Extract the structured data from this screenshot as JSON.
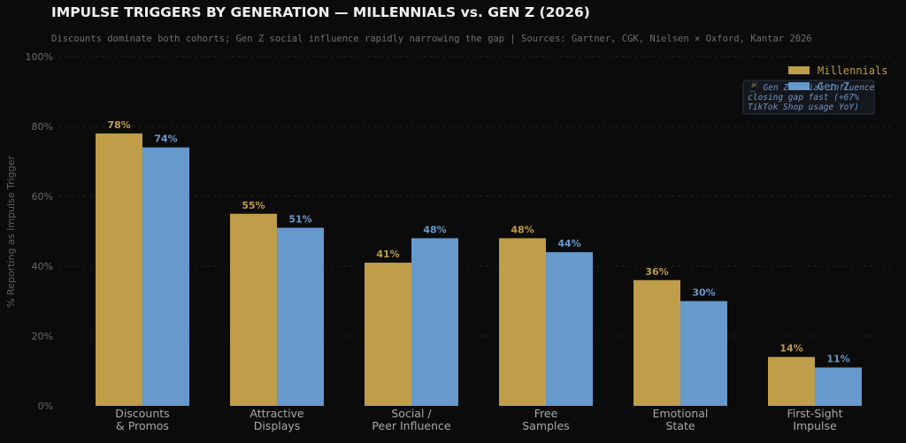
{
  "colors": {
    "background": "#0b0b0b",
    "millennials": "#bf9d49",
    "genz": "#6699cc",
    "title": "#f0f0f0",
    "subtitle": "#6f6f6f",
    "axis_text": "#6a6a6a",
    "category_text": "#a8a8a8",
    "grid": "#222222",
    "annotation_bg": "#14171d",
    "annotation_border": "#2d3440"
  },
  "header": {
    "title": "IMPULSE TRIGGERS BY GENERATION — MILLENNIALS vs. GEN Z (2026)",
    "subtitle": "Discounts dominate both cohorts; Gen Z social influence rapidly narrowing the gap  |  Sources: Gartner, CGK, Nielsen × Oxford, Kantar 2026"
  },
  "annotation": {
    "lines": [
      "📱 Gen Z social influence",
      "closing gap fast (+67%",
      "TikTok Shop usage YoY)"
    ]
  },
  "chart_data": {
    "type": "bar",
    "title": "IMPULSE TRIGGERS BY GENERATION — MILLENNIALS vs. GEN Z (2026)",
    "subtitle": "Discounts dominate both cohorts; Gen Z social influence rapidly narrowing the gap  |  Sources: Gartner, CGK, Nielsen × Oxford, Kantar 2026",
    "xlabel": "",
    "ylabel": "% Reporting as Impulse Trigger",
    "ylim": [
      0,
      100
    ],
    "yticks": [
      "0%",
      "20%",
      "40%",
      "60%",
      "80%",
      "100%"
    ],
    "grid": true,
    "legend_position": "top-right",
    "categories": [
      [
        "Discounts",
        "& Promos"
      ],
      [
        "Attractive",
        "Displays"
      ],
      [
        "Social /",
        "Peer Influence"
      ],
      [
        "Free",
        "Samples"
      ],
      [
        "Emotional",
        "State"
      ],
      [
        "First-Sight",
        "Impulse"
      ]
    ],
    "series": [
      {
        "name": "Millennials",
        "values": [
          78,
          55,
          41,
          48,
          36,
          14
        ],
        "labels": [
          "78%",
          "55%",
          "41%",
          "48%",
          "36%",
          "14%"
        ]
      },
      {
        "name": "Gen Z",
        "values": [
          74,
          51,
          48,
          44,
          30,
          11
        ],
        "labels": [
          "74%",
          "51%",
          "48%",
          "44%",
          "30%",
          "11%"
        ]
      }
    ]
  }
}
